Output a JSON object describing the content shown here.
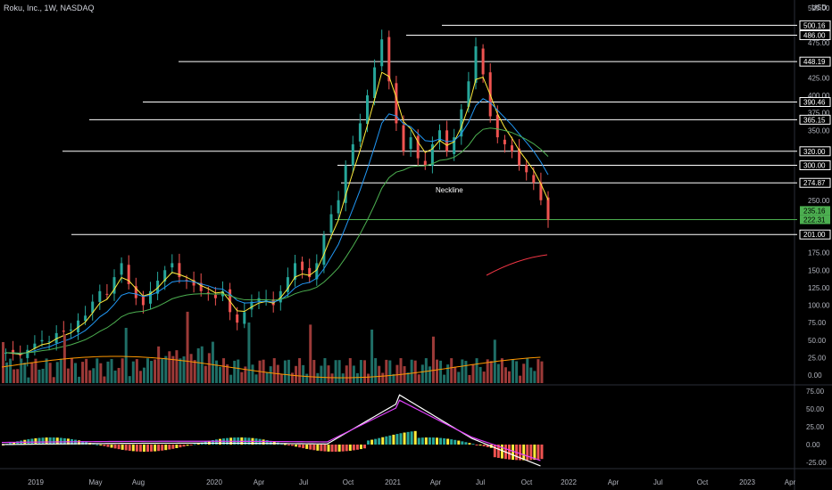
{
  "header": {
    "symbol_title": "Roku, Inc., 1W, NASDAQ",
    "currency": "USD"
  },
  "colors": {
    "up": "#26a69a",
    "down": "#ef5350",
    "background": "#000000",
    "ema_fast": "#ffeb3b",
    "ema_mid": "#2196f3",
    "ema_slow": "#4caf50",
    "volume_ma": "#ff9800",
    "macd_line": "#ffffff",
    "signal_line": "#e040fb",
    "forecast_line": "#f23645",
    "label_box": "#ffffff",
    "green_label": "#4caf50"
  },
  "chart_data": {
    "type": "candlestick",
    "price_axis": {
      "ticks": [
        "525.00",
        "475.00",
        "425.00",
        "400.00",
        "375.00",
        "350.00",
        "250.00",
        "175.00",
        "150.00",
        "125.00",
        "100.00",
        "75.00",
        "50.00",
        "25.00",
        "0.00"
      ],
      "scale": "linear",
      "ylim": [
        0,
        525
      ]
    },
    "x_axis": {
      "ticks": [
        "2019",
        "May",
        "Aug",
        "2020",
        "Apr",
        "Jul",
        "Oct",
        "2021",
        "Apr",
        "Jul",
        "Oct",
        "2022",
        "Apr",
        "Jul",
        "Oct",
        "2023",
        "Apr"
      ]
    },
    "level_lines": [
      {
        "value": 500.16,
        "label": "500.16"
      },
      {
        "value": 486.0,
        "label": "486.00"
      },
      {
        "value": 448.19,
        "label": "448.19"
      },
      {
        "value": 390.46,
        "label": "390.46"
      },
      {
        "value": 365.15,
        "label": "365.15"
      },
      {
        "value": 320.0,
        "label": "320.00"
      },
      {
        "value": 300.0,
        "label": "300.00"
      },
      {
        "value": 274.87,
        "label": "274.87"
      },
      {
        "value": 201.0,
        "label": "201.00"
      }
    ],
    "price_labels": [
      {
        "value": 235.16,
        "label": "235.16"
      },
      {
        "value": 222.31,
        "label": "222.31"
      }
    ],
    "annotations": [
      {
        "text": "Neckline"
      }
    ],
    "close_series": [
      [
        0,
        32
      ],
      [
        2,
        30
      ],
      [
        4,
        28
      ],
      [
        6,
        36
      ],
      [
        8,
        45
      ],
      [
        10,
        50
      ],
      [
        12,
        48
      ],
      [
        14,
        60
      ],
      [
        16,
        62
      ],
      [
        18,
        65
      ],
      [
        20,
        78
      ],
      [
        22,
        85
      ],
      [
        24,
        105
      ],
      [
        26,
        120
      ],
      [
        28,
        115
      ],
      [
        30,
        140
      ],
      [
        32,
        160
      ],
      [
        34,
        130
      ],
      [
        36,
        110
      ],
      [
        38,
        100
      ],
      [
        40,
        120
      ],
      [
        42,
        135
      ],
      [
        44,
        150
      ],
      [
        46,
        160
      ],
      [
        48,
        140
      ],
      [
        50,
        135
      ],
      [
        52,
        128
      ],
      [
        54,
        120
      ],
      [
        56,
        118
      ],
      [
        58,
        110
      ],
      [
        60,
        120
      ],
      [
        62,
        90
      ],
      [
        64,
        75
      ],
      [
        66,
        90
      ],
      [
        68,
        105
      ],
      [
        70,
        110
      ],
      [
        72,
        108
      ],
      [
        74,
        100
      ],
      [
        76,
        120
      ],
      [
        78,
        140
      ],
      [
        80,
        160
      ],
      [
        82,
        150
      ],
      [
        84,
        140
      ],
      [
        86,
        160
      ],
      [
        88,
        200
      ],
      [
        90,
        230
      ],
      [
        92,
        250
      ],
      [
        94,
        300
      ],
      [
        96,
        330
      ],
      [
        98,
        360
      ],
      [
        100,
        400
      ],
      [
        102,
        440
      ],
      [
        104,
        480
      ],
      [
        106,
        420
      ],
      [
        108,
        360
      ],
      [
        110,
        320
      ],
      [
        112,
        340
      ],
      [
        114,
        310
      ],
      [
        116,
        300
      ],
      [
        118,
        330
      ],
      [
        120,
        350
      ],
      [
        122,
        320
      ],
      [
        124,
        340
      ],
      [
        126,
        380
      ],
      [
        128,
        420
      ],
      [
        130,
        470
      ],
      [
        132,
        430
      ],
      [
        134,
        370
      ],
      [
        136,
        340
      ],
      [
        138,
        330
      ],
      [
        140,
        320
      ],
      [
        142,
        300
      ],
      [
        144,
        290
      ],
      [
        146,
        275
      ],
      [
        148,
        250
      ],
      [
        150,
        222
      ]
    ],
    "volume_histogram": {
      "name": "Volume"
    },
    "macd": {
      "ticks": [
        "75.00",
        "50.00",
        "25.00",
        "0.00",
        "-25.00"
      ],
      "ylim": [
        -30,
        80
      ]
    }
  }
}
